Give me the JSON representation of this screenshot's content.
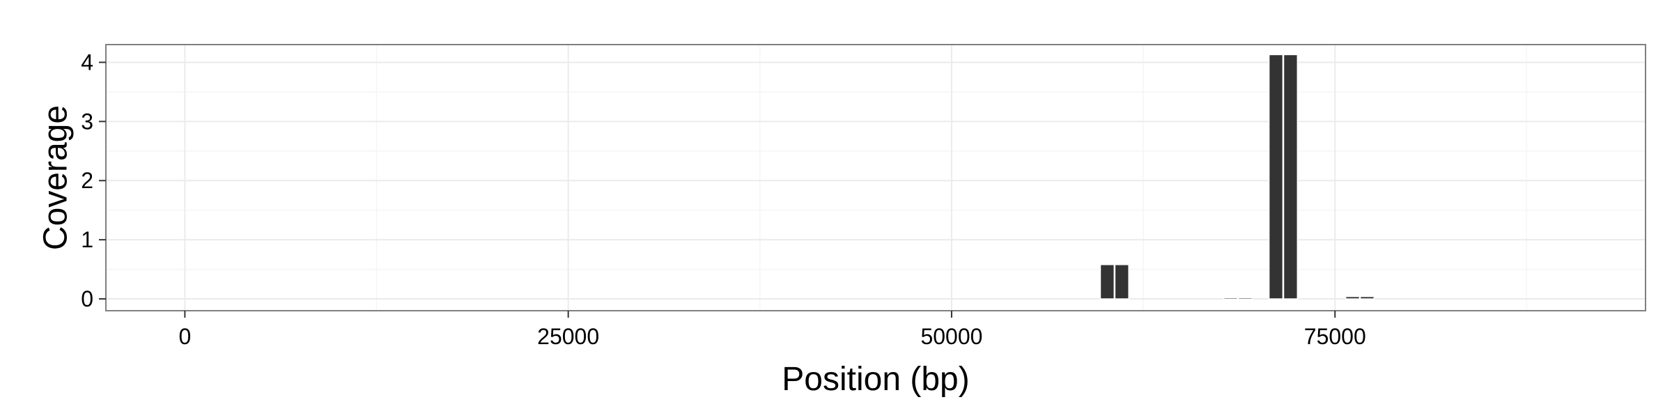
{
  "chart_data": {
    "type": "bar",
    "xlabel": "Position (bp)",
    "ylabel": "Coverage",
    "xlim": [
      -5150,
      95250
    ],
    "ylim": [
      -0.2,
      4.3
    ],
    "xticks": [
      0,
      25000,
      50000,
      75000
    ],
    "yticks": [
      0,
      1,
      2,
      3,
      4
    ],
    "grid": true,
    "bar_width": 900,
    "bars": [
      {
        "x": 60150,
        "value": 0.58
      },
      {
        "x": 61100,
        "value": 0.58
      },
      {
        "x": 68200,
        "value": 0.02
      },
      {
        "x": 69150,
        "value": 0.02
      },
      {
        "x": 71150,
        "value": 4.13
      },
      {
        "x": 72100,
        "value": 4.13
      },
      {
        "x": 76150,
        "value": 0.04
      },
      {
        "x": 77100,
        "value": 0.04
      }
    ],
    "colors": {
      "bar": "#333333",
      "bar_edge": "#ffffff",
      "panel_border": "#7f7f7f",
      "grid_major": "#ebebeb",
      "grid_minor": "#f5f5f5",
      "tick": "#333333"
    }
  }
}
